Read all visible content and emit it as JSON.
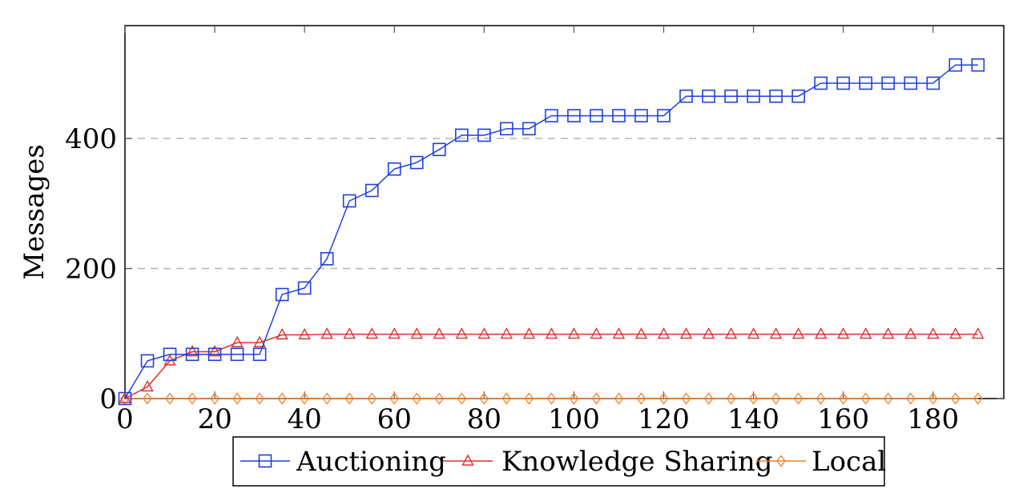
{
  "chart_data": {
    "type": "line",
    "title": "",
    "xlabel": "",
    "ylabel": "Messages",
    "xlim": [
      0,
      193
    ],
    "ylim": [
      0,
      570
    ],
    "grid": "horizontal-dashed",
    "legend_position": "bottom-center",
    "x_ticks": [
      0,
      20,
      40,
      60,
      80,
      100,
      120,
      140,
      160,
      180
    ],
    "y_ticks": [
      0,
      200,
      400
    ],
    "x": [
      0,
      5,
      10,
      15,
      20,
      25,
      30,
      35,
      40,
      45,
      50,
      55,
      60,
      65,
      70,
      75,
      80,
      85,
      90,
      95,
      100,
      105,
      110,
      115,
      120,
      125,
      130,
      135,
      140,
      145,
      150,
      155,
      160,
      165,
      170,
      175,
      180,
      185,
      190
    ],
    "series": [
      {
        "name": "Auctioning",
        "color": "#1f3fe0",
        "marker": "square",
        "values": [
          0,
          58,
          68,
          68,
          68,
          68,
          68,
          160,
          170,
          215,
          304,
          320,
          353,
          363,
          383,
          405,
          405,
          415,
          415,
          435,
          435,
          435,
          435,
          435,
          435,
          465,
          465,
          465,
          465,
          465,
          465,
          485,
          485,
          485,
          485,
          485,
          485,
          513,
          513
        ]
      },
      {
        "name": "Knowledge Sharing",
        "color": "#e0302c",
        "marker": "triangle",
        "values": [
          0,
          18,
          58,
          72,
          72,
          86,
          86,
          98,
          98,
          99,
          99,
          99,
          99,
          99,
          99,
          99,
          99,
          99,
          99,
          99,
          99,
          99,
          99,
          99,
          99,
          99,
          99,
          99,
          99,
          99,
          99,
          99,
          99,
          99,
          99,
          99,
          99,
          99,
          99
        ]
      },
      {
        "name": "Local",
        "color": "#f0812a",
        "marker": "diamond",
        "values": [
          0,
          0,
          0,
          0,
          0,
          0,
          0,
          0,
          0,
          0,
          0,
          0,
          0,
          0,
          0,
          0,
          0,
          0,
          0,
          0,
          0,
          0,
          0,
          0,
          0,
          0,
          0,
          0,
          0,
          0,
          0,
          0,
          0,
          0,
          0,
          0,
          0,
          0,
          0
        ]
      }
    ]
  }
}
